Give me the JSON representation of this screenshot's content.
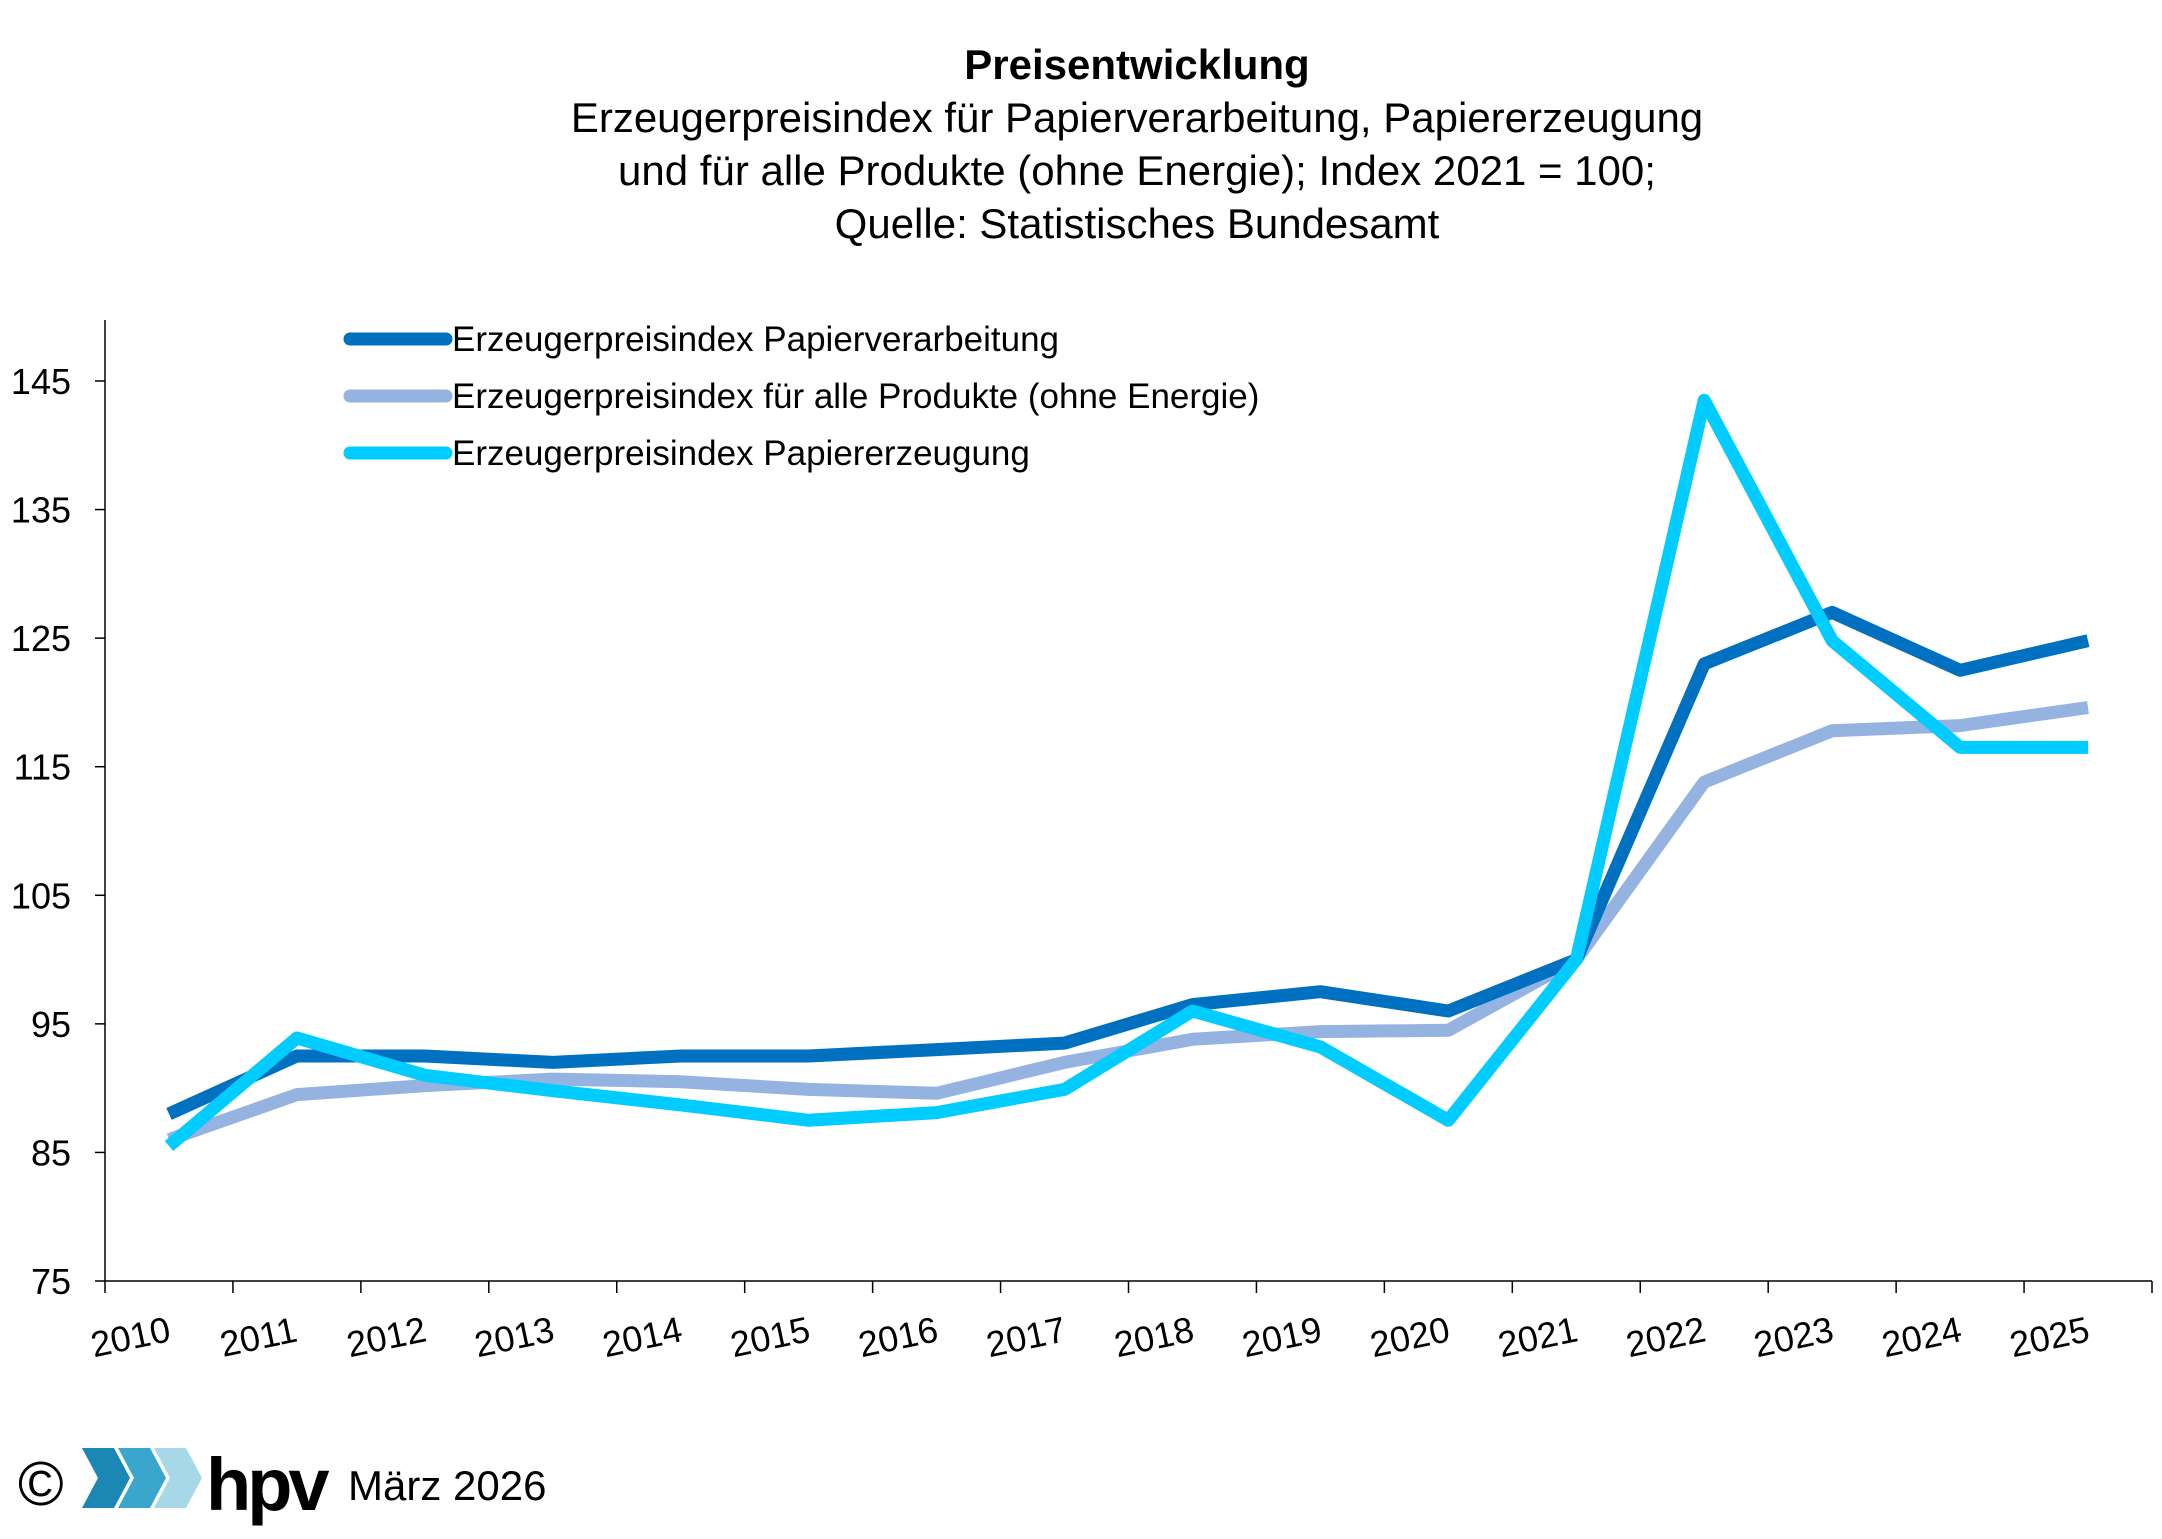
{
  "title": "Preisentwicklung",
  "subtitle_lines": [
    "Erzeugerpreisindex für Papierverarbeitung, Papiererzeugung",
    "und für alle Produkte (ohne Energie); Index 2021 = 100;",
    "Quelle: Statistisches Bundesamt"
  ],
  "footer": {
    "copyright": "©",
    "logo_text": "hpv",
    "date": "März 2026"
  },
  "colors": {
    "dark_blue": "#0070c0",
    "light_blue": "#95b3e0",
    "cyan": "#00ccff",
    "axis": "#000000"
  },
  "chart_data": {
    "type": "line",
    "title": "Preisentwicklung",
    "xlabel": "",
    "ylabel": "",
    "ylim": [
      75,
      150
    ],
    "yticks": [
      75,
      85,
      95,
      105,
      115,
      125,
      135,
      145
    ],
    "ytick_labels": [
      "75",
      "85",
      "95",
      "105",
      "115",
      "125",
      "135",
      "145"
    ],
    "categories": [
      "2010",
      "2011",
      "2012",
      "2013",
      "2014",
      "2015",
      "2016",
      "2017",
      "2018",
      "2019",
      "2020",
      "2021",
      "2022",
      "2023",
      "2024",
      "2025"
    ],
    "grid": false,
    "legend_position": "top-left",
    "series": [
      {
        "name": "Erzeugerpreisindex Papierverarbeitung",
        "color": "#0070c0",
        "values": [
          88.0,
          92.5,
          92.5,
          92.0,
          92.5,
          92.5,
          93.0,
          93.5,
          96.5,
          97.5,
          96.0,
          100.0,
          123.0,
          127.0,
          122.5,
          124.8
        ]
      },
      {
        "name": "Erzeugerpreisindex für alle Produkte (ohne Energie)",
        "color": "#95b3e0",
        "values": [
          86.0,
          89.5,
          90.2,
          90.7,
          90.5,
          89.9,
          89.6,
          92.0,
          93.8,
          94.4,
          94.5,
          100.0,
          113.8,
          117.8,
          118.2,
          119.6
        ]
      },
      {
        "name": "Erzeugerpreisindex Papiererzeugung",
        "color": "#00ccff",
        "values": [
          85.5,
          93.9,
          91.0,
          89.8,
          88.7,
          87.5,
          88.1,
          89.9,
          96.0,
          93.2,
          87.5,
          100.0,
          143.5,
          124.8,
          116.5,
          116.5
        ]
      }
    ]
  }
}
